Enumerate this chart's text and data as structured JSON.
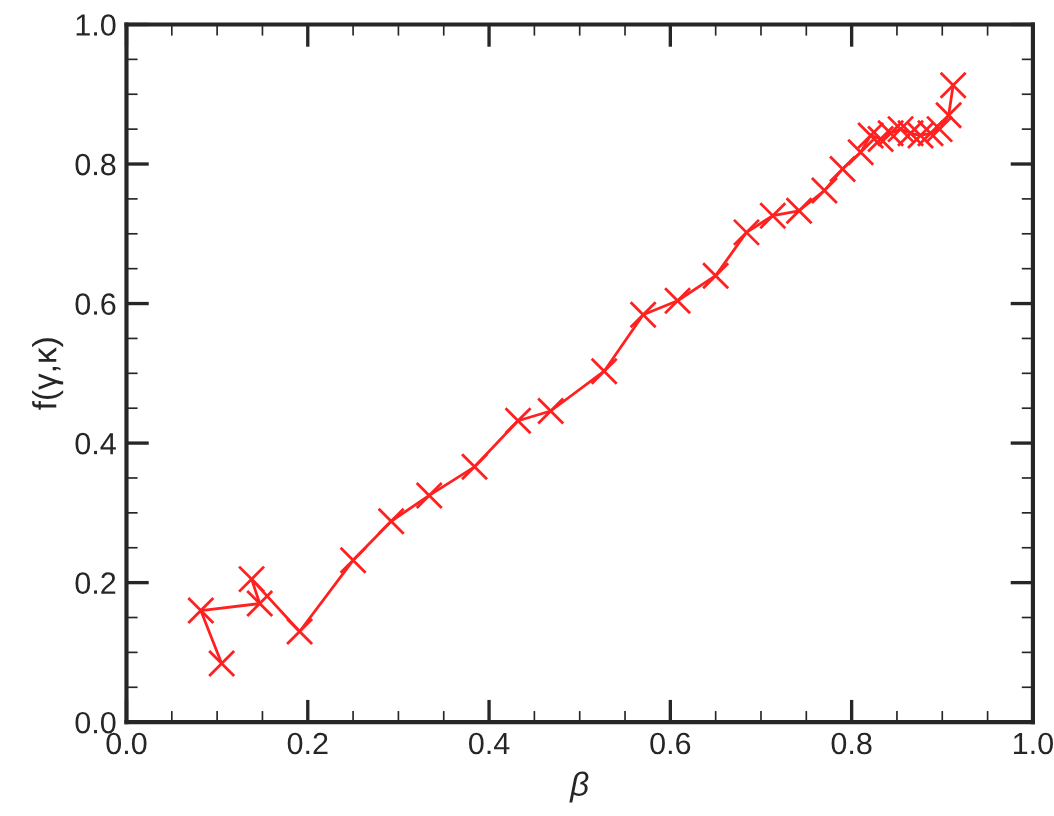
{
  "chart_data": {
    "type": "line",
    "xlabel": "β",
    "ylabel": "f(γ,κ)",
    "xlim": [
      0.0,
      1.0
    ],
    "ylim": [
      0.0,
      1.0
    ],
    "xticks": [
      {
        "value": 0,
        "label": "0.0"
      },
      0.2,
      0.4,
      0.6,
      0.8,
      {
        "value": 1,
        "label": "1.0"
      }
    ],
    "yticks": [
      {
        "value": 0,
        "label": "0.0"
      },
      0.2,
      0.4,
      0.6,
      0.8,
      {
        "value": 1,
        "label": "1.0"
      }
    ],
    "marker": "cross",
    "line_style": "solid",
    "grid": false,
    "legend": false,
    "series": [
      {
        "color": "#ff2020",
        "x": [
          0.105,
          0.082,
          0.147,
          0.138,
          0.191,
          0.25,
          0.292,
          0.334,
          0.384,
          0.432,
          0.468,
          0.527,
          0.57,
          0.608,
          0.65,
          0.684,
          0.713,
          0.742,
          0.77,
          0.79,
          0.81,
          0.821,
          0.832,
          0.843,
          0.854,
          0.865,
          0.876,
          0.887,
          0.897,
          0.907,
          0.912
        ],
        "values": [
          0.084,
          0.16,
          0.17,
          0.205,
          0.13,
          0.232,
          0.288,
          0.325,
          0.366,
          0.432,
          0.446,
          0.503,
          0.584,
          0.604,
          0.64,
          0.702,
          0.726,
          0.733,
          0.762,
          0.793,
          0.817,
          0.841,
          0.836,
          0.844,
          0.85,
          0.844,
          0.841,
          0.844,
          0.85,
          0.87,
          0.913
        ]
      }
    ]
  }
}
